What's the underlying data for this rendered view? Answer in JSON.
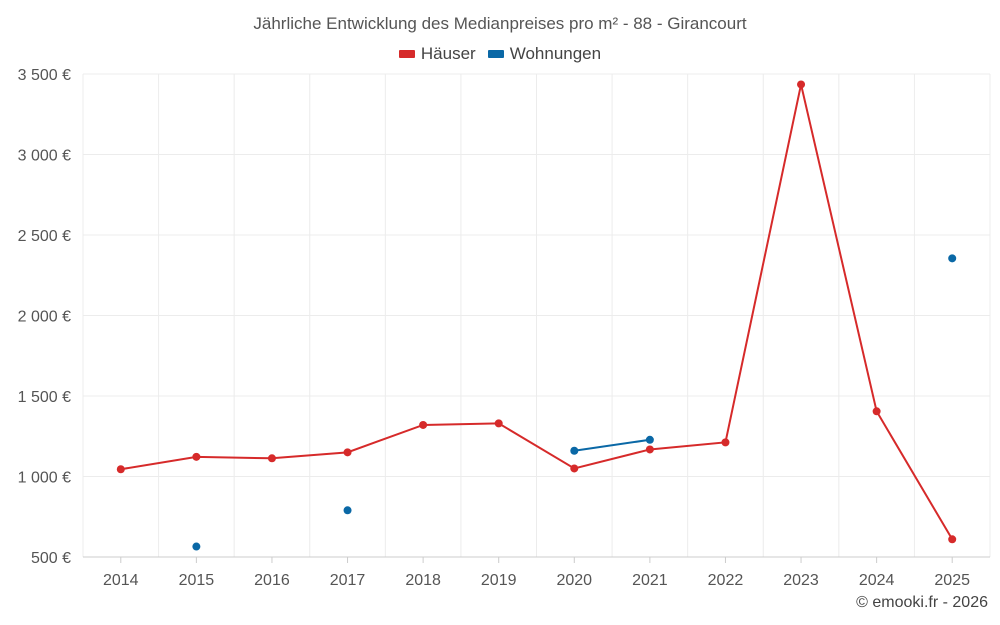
{
  "chart_data": {
    "type": "line",
    "title": "Jährliche Entwicklung des Medianpreises pro m² - 88 - Girancourt",
    "xlabel": "",
    "ylabel": "",
    "categories": [
      "2014",
      "2015",
      "2016",
      "2017",
      "2018",
      "2019",
      "2020",
      "2021",
      "2022",
      "2023",
      "2024",
      "2025"
    ],
    "ylim": [
      500,
      3500
    ],
    "yticks": [
      500,
      1000,
      1500,
      2000,
      2500,
      3000,
      3500
    ],
    "ytick_labels": [
      "500 €",
      "1 000 €",
      "1 500 €",
      "2 000 €",
      "2 500 €",
      "3 000 €",
      "3 500 €"
    ],
    "grid": true,
    "legend_position": "top-center",
    "series": [
      {
        "name": "Häuser",
        "color": "#d62a2a",
        "values": [
          1045,
          1122,
          1113,
          1150,
          1320,
          1330,
          1050,
          1168,
          1212,
          3435,
          1405,
          610
        ]
      },
      {
        "name": "Wohnungen",
        "color": "#0a68a6",
        "values": [
          null,
          565,
          null,
          790,
          null,
          null,
          1160,
          1228,
          null,
          null,
          null,
          2355
        ]
      }
    ]
  },
  "footer": {
    "credit": "© emooki.fr - 2026"
  }
}
